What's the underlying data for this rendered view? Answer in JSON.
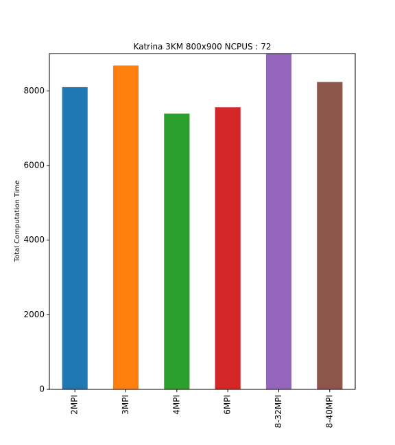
{
  "chart_data": {
    "type": "bar",
    "title": "Katrina 3KM 800x900 NCPUS : 72",
    "xlabel": "",
    "ylabel": "Total Computation Time",
    "categories": [
      "2MPI",
      "3MPI",
      "4MPI",
      "6MPI",
      "8-32MPI",
      "8-40MPI"
    ],
    "values": [
      8100,
      8680,
      7390,
      7560,
      8990,
      8240
    ],
    "colors": [
      "#1f77b4",
      "#ff7f0e",
      "#2ca02c",
      "#d62728",
      "#9467bd",
      "#8c564b"
    ],
    "yticks": [
      0,
      2000,
      4000,
      6000,
      8000
    ],
    "ylim": [
      0,
      9000
    ],
    "grid": false,
    "legend": "none"
  }
}
